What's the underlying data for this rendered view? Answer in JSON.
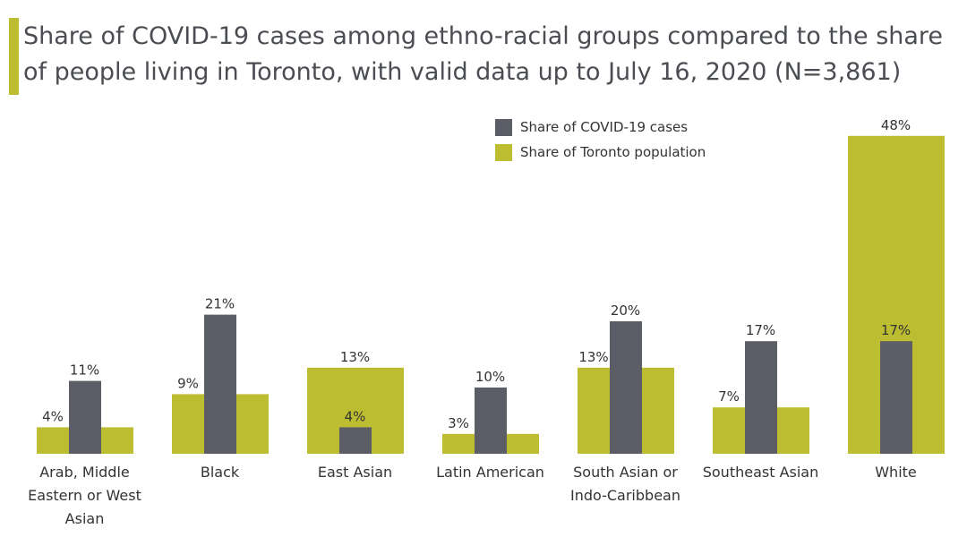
{
  "colors": {
    "accent": "#bdbd32",
    "cases": "#5b5e66",
    "population": "#bdbd32"
  },
  "chart_data": {
    "type": "bar",
    "title": "Share of COVID-19 cases among ethno-racial groups compared to the share of people living in Toronto, with valid data up to July 16, 2020 (N=3,861)",
    "categories": [
      [
        "Arab, Middle",
        "Eastern or West",
        "Asian"
      ],
      [
        "Black"
      ],
      [
        "East Asian"
      ],
      [
        "Latin American"
      ],
      [
        "South Asian or",
        "Indo-Caribbean"
      ],
      [
        "Southeast Asian"
      ],
      [
        "White"
      ]
    ],
    "series": [
      {
        "name": "Share of COVID-19 cases",
        "color": "#5b5e66",
        "values": [
          11,
          21,
          4,
          10,
          20,
          17,
          17
        ],
        "labels": [
          "11%",
          "21%",
          "4%",
          "10%",
          "20%",
          "17%",
          "17%"
        ]
      },
      {
        "name": "Share of Toronto population",
        "color": "#bdbd32",
        "values": [
          4,
          9,
          13,
          3,
          13,
          7,
          48
        ],
        "labels": [
          "4%",
          "9%",
          "13%",
          "3%",
          "13%",
          "7%",
          "48%"
        ]
      }
    ],
    "ylim": [
      0,
      48
    ],
    "xlabel": "",
    "ylabel": "",
    "legend": "top-center"
  }
}
